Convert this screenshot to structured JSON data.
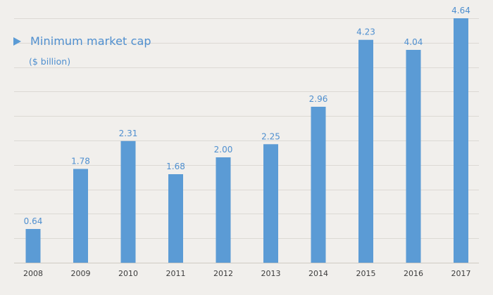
{
  "chart_data": {
    "type": "bar",
    "title": "",
    "xlabel": "",
    "ylabel": "",
    "unit": "($ billion)",
    "categories": [
      "2008",
      "2009",
      "2010",
      "2011",
      "2012",
      "2013",
      "2014",
      "2015",
      "2016",
      "2017"
    ],
    "series": [
      {
        "name": "Minimum market cap",
        "values": [
          0.64,
          1.78,
          2.31,
          1.68,
          2.0,
          2.25,
          2.96,
          4.23,
          4.04,
          4.64
        ],
        "labels": [
          "0.64",
          "1.78",
          "2.31",
          "1.68",
          "2.00",
          "2.25",
          "2.96",
          "4.23",
          "4.04",
          "4.64"
        ]
      }
    ],
    "ylim": [
      0,
      4.64
    ],
    "grid": true,
    "legend": "top-left",
    "colors": {
      "bar": "#5b9bd5",
      "text": "#4f8fcf",
      "grid": "#dcd9d4",
      "background": "#f1efec"
    }
  }
}
